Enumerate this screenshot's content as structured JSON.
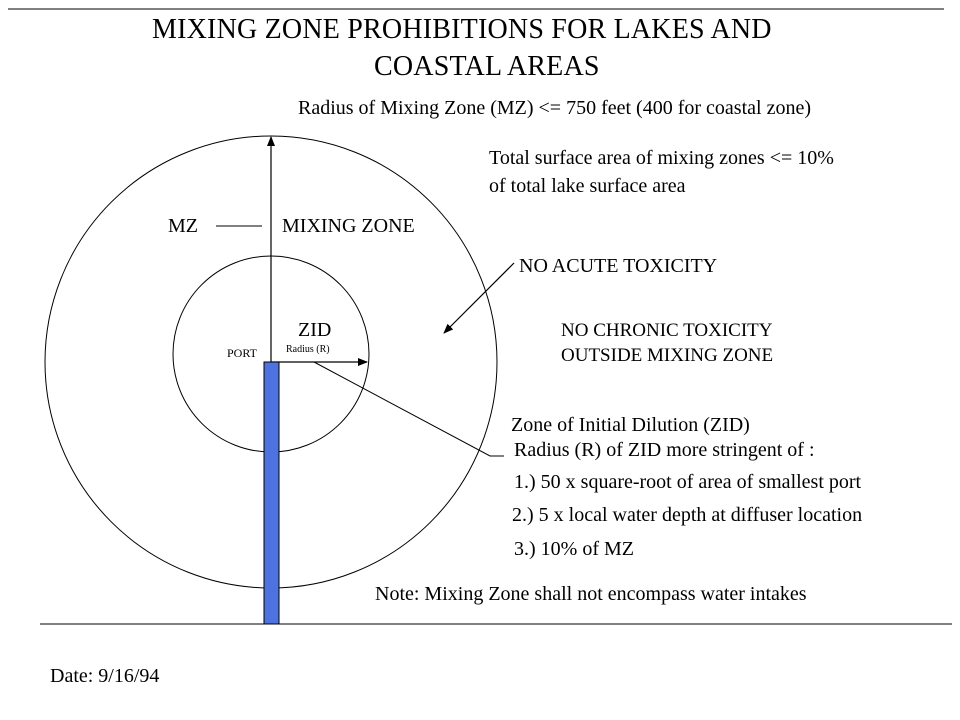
{
  "title": {
    "line1": "MIXING ZONE PROHIBITIONS FOR LAKES AND",
    "line2": "COASTAL AREAS"
  },
  "labels": {
    "radius_mz": "Radius of Mixing Zone (MZ) <= 750 feet (400 for coastal zone)",
    "surface_area_1": "Total surface area of mixing zones <= 10%",
    "surface_area_2": "of total lake surface area",
    "mz": "MZ",
    "mixing_zone": "MIXING ZONE",
    "no_acute": "NO ACUTE TOXICITY",
    "zid": "ZID",
    "radius_r": "Radius (R)",
    "port": "PORT",
    "no_chronic_1": "NO CHRONIC TOXICITY",
    "no_chronic_2": "OUTSIDE MIXING ZONE",
    "zid_full": "Zone of Initial Dilution (ZID)",
    "zid_radius": "Radius (R) of ZID more stringent of :",
    "criteria_1": "1.) 50 x square-root of area of  smallest port",
    "criteria_2": "2.) 5 x local water depth at diffuser location",
    "criteria_3": "3.) 10% of MZ",
    "note": "Note: Mixing Zone shall not encompass water intakes",
    "date": "Date: 9/16/94"
  },
  "colors": {
    "pipe": "#4d73e0",
    "line": "#000000"
  }
}
